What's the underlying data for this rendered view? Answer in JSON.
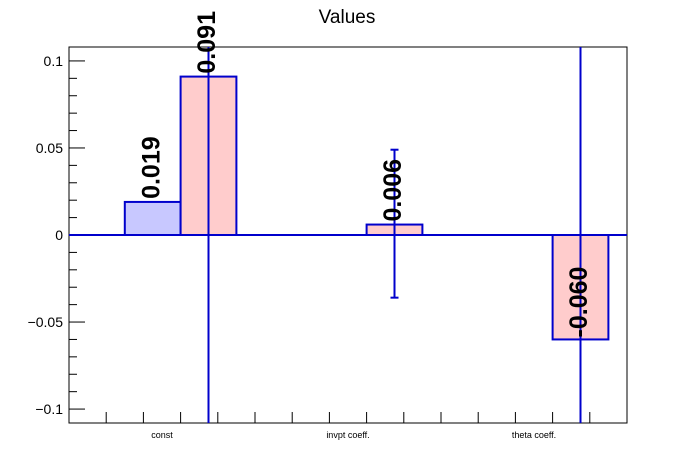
{
  "chart_data": {
    "type": "bar",
    "title": "Values",
    "xlabel": "",
    "ylabel": "",
    "categories": [
      "const",
      "invpt coeff.",
      "theta coeff."
    ],
    "ylim": [
      -0.108,
      0.108
    ],
    "yticks": [
      {
        "value": 0.1,
        "label": "0.1"
      },
      {
        "value": 0.05,
        "label": "0.05"
      },
      {
        "value": 0,
        "label": "0"
      },
      {
        "value": -0.05,
        "label": "−0.05"
      },
      {
        "value": -0.1,
        "label": "−0.1"
      }
    ],
    "grid": false,
    "legend": "none",
    "bars": [
      {
        "category_index": 0,
        "slot": 0,
        "value": 0.019,
        "label": "0.019",
        "error": null,
        "fill": "#c8c8ff"
      },
      {
        "category_index": 0,
        "slot": 1,
        "value": 0.091,
        "label": "0.091",
        "error_low": -0.108,
        "error_high": 0.108,
        "fill": "#ffcccc"
      },
      {
        "category_index": 1,
        "slot": 1,
        "value": 0.006,
        "label": "0.006",
        "error_low": -0.036,
        "error_high": 0.049,
        "fill": "#ffcccc"
      },
      {
        "category_index": 2,
        "slot": 1,
        "value": -0.06,
        "label": "-0.060",
        "error_low": -0.108,
        "error_high": 0.108,
        "fill": "#ffcccc"
      }
    ],
    "colors": {
      "edge": "#0000cc",
      "axis": "#000000"
    }
  }
}
